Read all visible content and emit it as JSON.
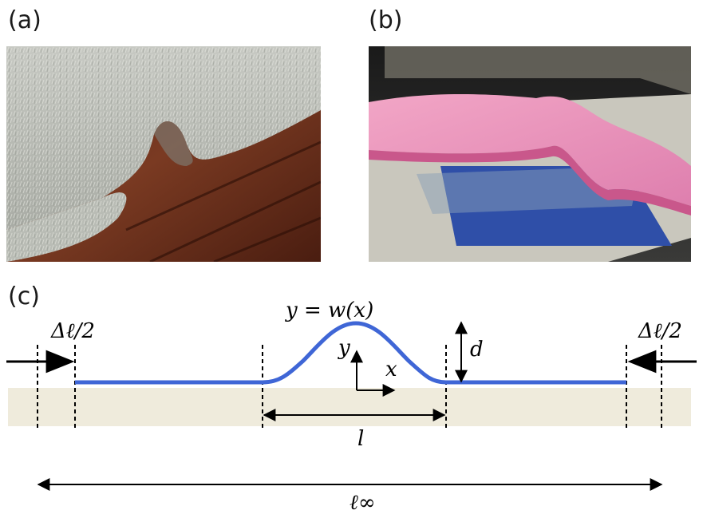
{
  "panels": {
    "a": {
      "label": "(a)"
    },
    "b": {
      "label": "(b)"
    },
    "c": {
      "label": "(c)"
    }
  },
  "diagram": {
    "curve_label": "y = w(x)",
    "left_shift": "Δℓ/2",
    "right_shift": "Δℓ/2",
    "height_label": "d",
    "axis_y": "y",
    "axis_x": "x",
    "width_label": "l",
    "total_length": "ℓ∞"
  },
  "colors": {
    "sheet": "#3f66d6",
    "substrate": "#efebdc",
    "arrows": "#000000"
  }
}
